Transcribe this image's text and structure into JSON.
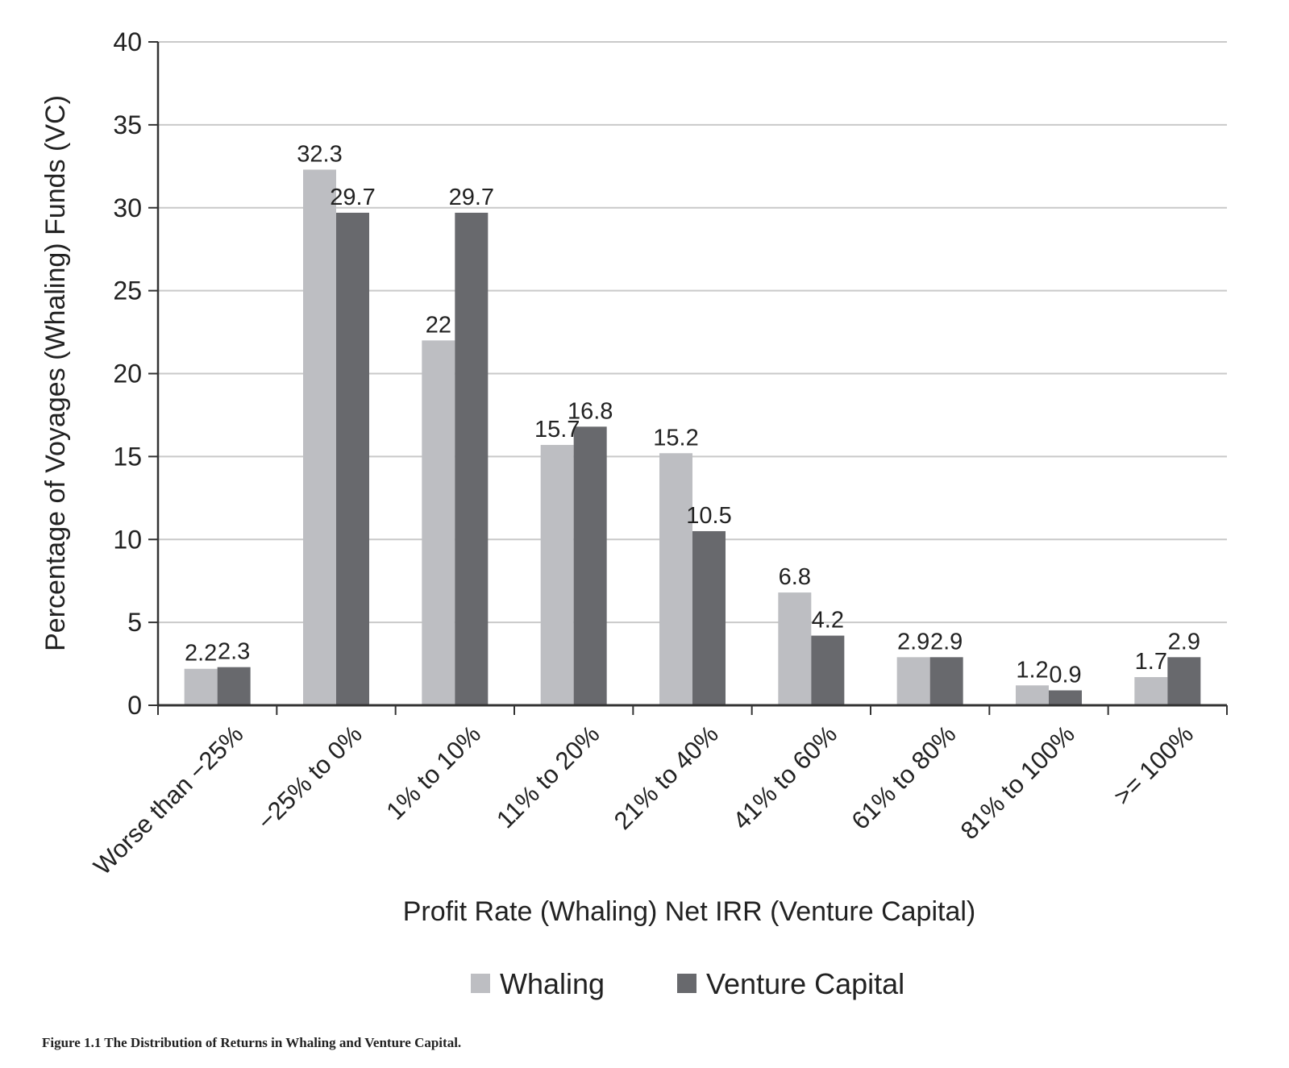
{
  "chart_data": {
    "type": "bar",
    "categories": [
      "Worse than −25%",
      "−25% to 0%",
      "1% to 10%",
      "11% to 20%",
      "21% to 40%",
      "41% to 60%",
      "61% to 80%",
      "81% to 100%",
      ">= 100%"
    ],
    "series": [
      {
        "name": "Whaling",
        "color": "#bdbec2",
        "values": [
          2.2,
          32.3,
          22,
          15.7,
          15.2,
          6.8,
          2.9,
          1.2,
          1.7
        ]
      },
      {
        "name": "Venture Capital",
        "color": "#68696d",
        "values": [
          2.3,
          29.7,
          29.7,
          16.8,
          10.5,
          4.2,
          2.9,
          0.9,
          2.9
        ]
      }
    ],
    "value_labels": [
      [
        "2.2",
        "32.3",
        "22",
        "15.7",
        "15.2",
        "6.8",
        "2.9",
        "1.2",
        "1.7"
      ],
      [
        "2.3",
        "29.7",
        "29.7",
        "16.8",
        "10.5",
        "4.2",
        "2.9",
        "0.9",
        "2.9"
      ]
    ],
    "xlabel": "Profit Rate (Whaling) Net IRR (Venture Capital)",
    "ylabel": "Percentage of Voyages (Whaling) Funds (VC)",
    "ylim": [
      0,
      40
    ],
    "yticks": [
      0,
      5,
      10,
      15,
      20,
      25,
      30,
      35,
      40
    ],
    "grid": true,
    "legend": "bottom-center"
  },
  "caption": "Figure 1.1 The Distribution of Returns in Whaling and Venture Capital."
}
